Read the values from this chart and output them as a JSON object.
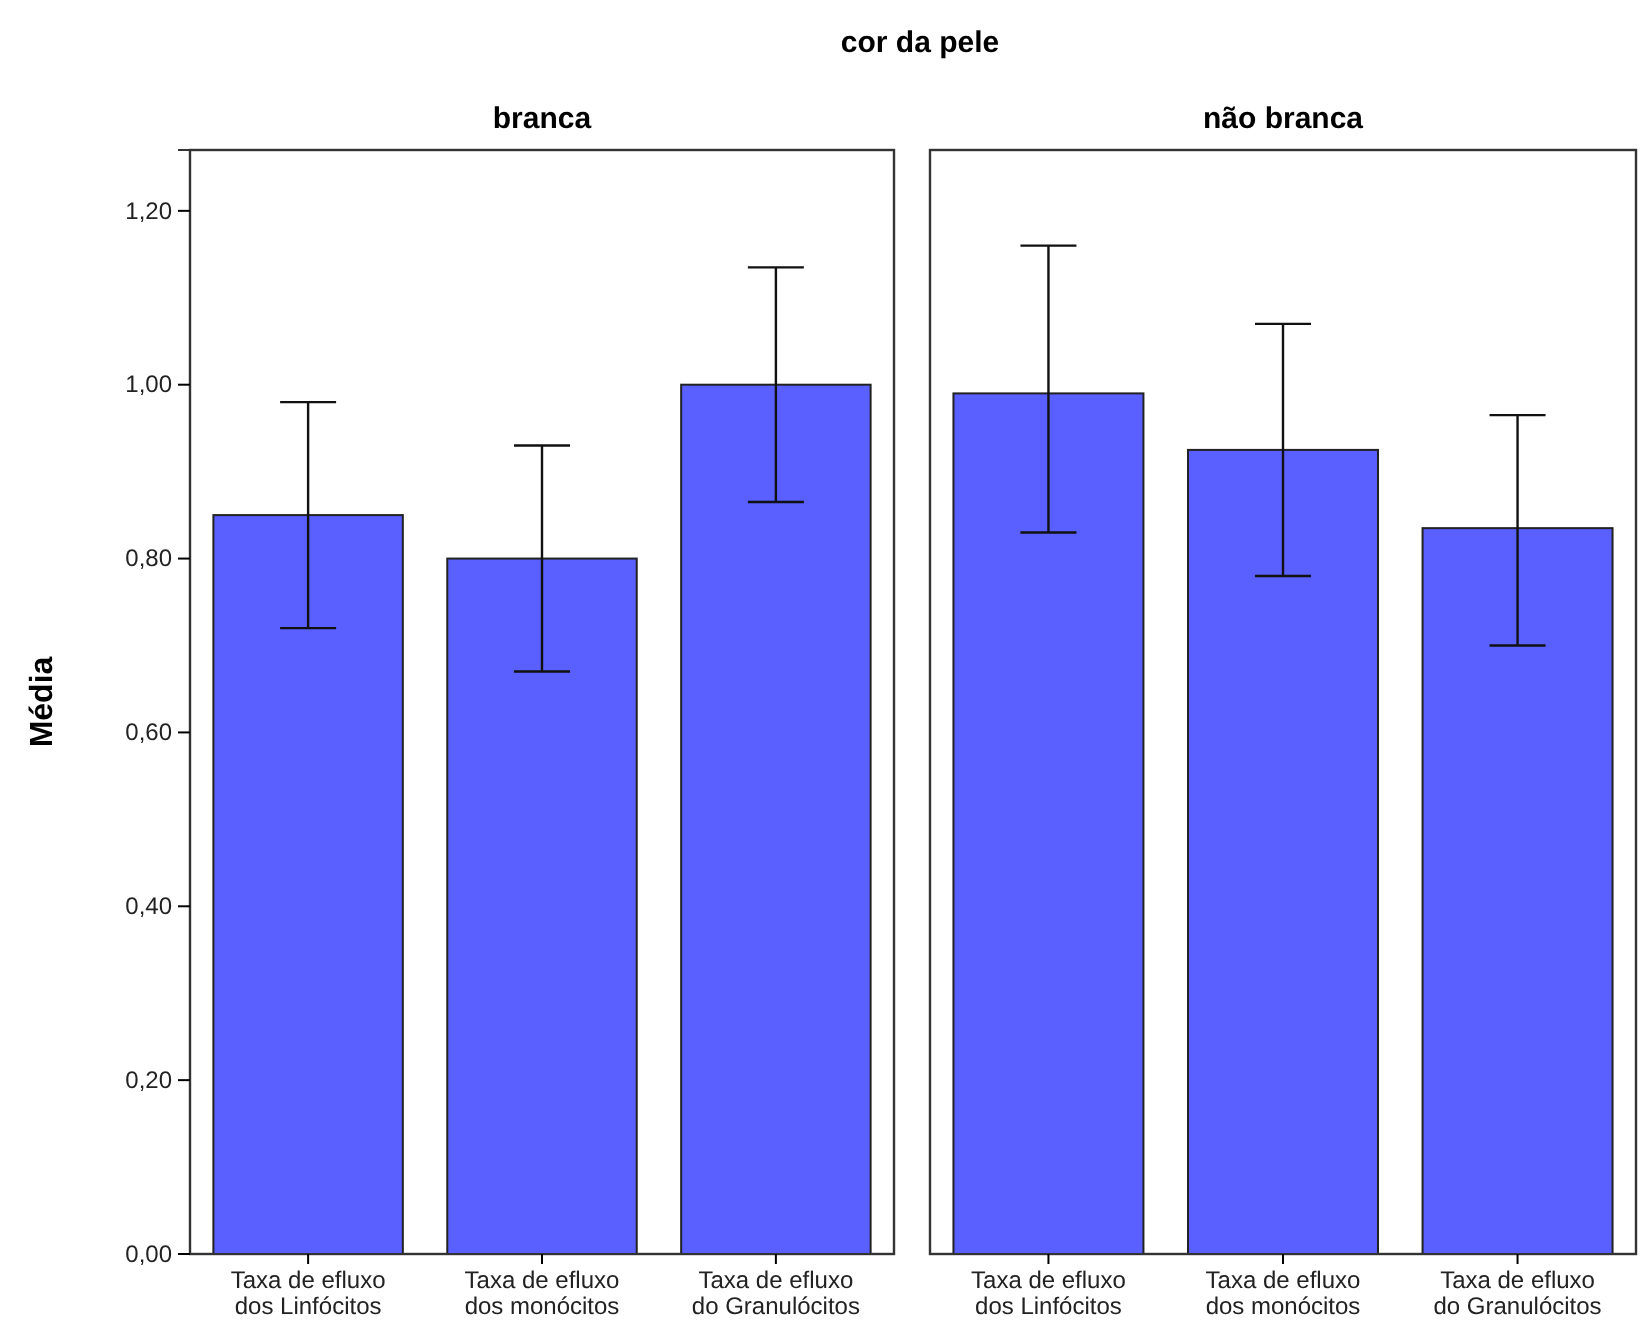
{
  "chart_data": [
    {
      "type": "bar",
      "title": "cor da pele",
      "subtitle": "branca",
      "ylabel": "Média",
      "categories": [
        "Taxa de efluxo\ndos Linfócitos",
        "Taxa de efluxo\ndos monócitos",
        "Taxa de efluxo\ndo Granulócitos"
      ],
      "values": [
        0.85,
        0.8,
        1.0
      ],
      "errors": [
        [
          0.72,
          0.98
        ],
        [
          0.67,
          0.93
        ],
        [
          0.865,
          1.135
        ]
      ],
      "color": "#5a5fff",
      "ylim": [
        0,
        1.27
      ],
      "yticks": [
        {
          "value": 0,
          "label": "0,00"
        },
        {
          "value": 0.2,
          "label": "0,20"
        },
        {
          "value": 0.4,
          "label": "0,40"
        },
        {
          "value": 0.6,
          "label": "0,60"
        },
        {
          "value": 0.8,
          "label": "0,80"
        },
        {
          "value": 1.0,
          "label": "1,00"
        },
        {
          "value": 1.2,
          "label": "1,20"
        }
      ]
    },
    {
      "type": "bar",
      "subtitle": "não branca",
      "categories": [
        "Taxa de efluxo\ndos Linfócitos",
        "Taxa de efluxo\ndos monócitos",
        "Taxa de efluxo\ndo Granulócitos"
      ],
      "values": [
        0.99,
        0.925,
        0.835
      ],
      "errors": [
        [
          0.83,
          1.16
        ],
        [
          0.78,
          1.07
        ],
        [
          0.7,
          0.965
        ]
      ],
      "color": "#5a5fff",
      "ylim": [
        0,
        1.27
      ],
      "tick_labels": "x"
    }
  ]
}
